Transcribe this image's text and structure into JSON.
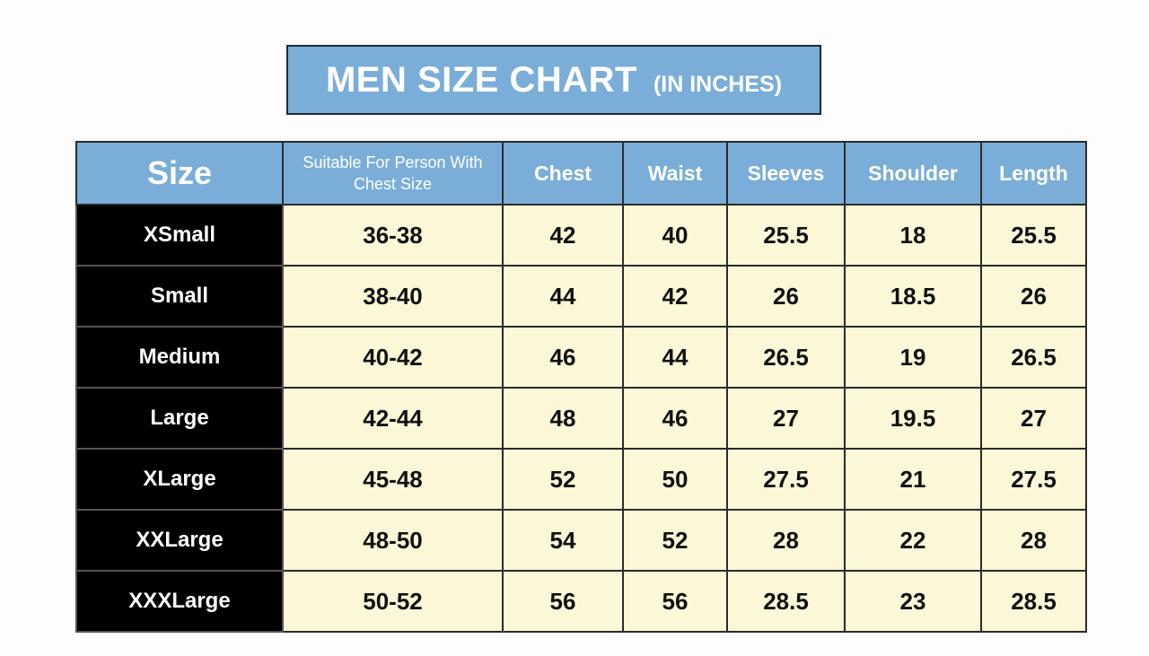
{
  "title": {
    "main": "MEN SIZE CHART",
    "sub": "(IN INCHES)"
  },
  "colors": {
    "header": "#7aaed8",
    "cell": "#fcf7d6",
    "size_cell": "#000000"
  },
  "chart_data": {
    "type": "table",
    "columns": [
      "Size",
      "Suitable For Person With Chest Size",
      "Chest",
      "Waist",
      "Sleeves",
      "Shoulder",
      "Length"
    ],
    "rows": [
      [
        "XSmall",
        "36-38",
        "42",
        "40",
        "25.5",
        "18",
        "25.5"
      ],
      [
        "Small",
        "38-40",
        "44",
        "42",
        "26",
        "18.5",
        "26"
      ],
      [
        "Medium",
        "40-42",
        "46",
        "44",
        "26.5",
        "19",
        "26.5"
      ],
      [
        "Large",
        "42-44",
        "48",
        "46",
        "27",
        "19.5",
        "27"
      ],
      [
        "XLarge",
        "45-48",
        "52",
        "50",
        "27.5",
        "21",
        "27.5"
      ],
      [
        "XXLarge",
        "48-50",
        "54",
        "52",
        "28",
        "22",
        "28"
      ],
      [
        "XXXLarge",
        "50-52",
        "56",
        "56",
        "28.5",
        "23",
        "28.5"
      ]
    ]
  }
}
